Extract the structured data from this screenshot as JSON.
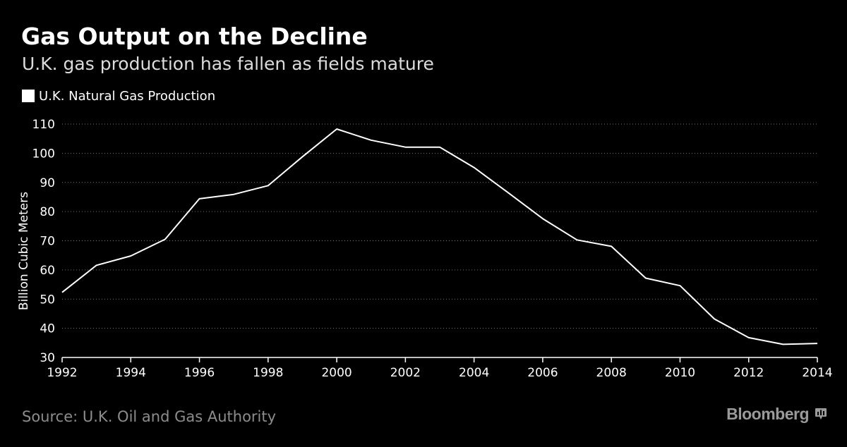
{
  "header": {
    "title": "Gas Output on the Decline",
    "subtitle": "U.K. gas production has fallen as fields mature"
  },
  "legend": {
    "label": "U.K. Natural Gas Production"
  },
  "footer": {
    "source": "Source: U.K. Oil and Gas Authority",
    "brand": "Bloomberg",
    "brand_icon": "bloomberg-chat-icon"
  },
  "colors": {
    "background": "#000000",
    "line": "#ffffff",
    "grid": "#777777",
    "text": "#ffffff",
    "muted": "#8c8c8c"
  },
  "chart_data": {
    "type": "line",
    "title": "Gas Output on the Decline",
    "subtitle": "U.K. gas production has fallen as fields mature",
    "xlabel": "",
    "ylabel": "Billion Cubic Meters",
    "x": [
      1992,
      1993,
      1994,
      1995,
      1996,
      1997,
      1998,
      1999,
      2000,
      2001,
      2002,
      2003,
      2004,
      2005,
      2006,
      2007,
      2008,
      2009,
      2010,
      2011,
      2012,
      2013,
      2014
    ],
    "series": [
      {
        "name": "U.K. Natural Gas Production",
        "values": [
          52.3,
          61.6,
          64.8,
          70.5,
          84.4,
          85.9,
          88.9,
          98.8,
          108.3,
          104.5,
          102.1,
          102.1,
          95.1,
          86.4,
          77.6,
          70.3,
          68.1,
          57.2,
          54.6,
          43.2,
          36.8,
          34.5,
          34.8
        ]
      }
    ],
    "xlim": [
      1992,
      2014
    ],
    "ylim": [
      30,
      110
    ],
    "xticks": [
      1992,
      1994,
      1996,
      1998,
      2000,
      2002,
      2004,
      2006,
      2008,
      2010,
      2012,
      2014
    ],
    "yticks": [
      30,
      40,
      50,
      60,
      70,
      80,
      90,
      100,
      110
    ],
    "grid": true,
    "legend_position": "top-left"
  }
}
